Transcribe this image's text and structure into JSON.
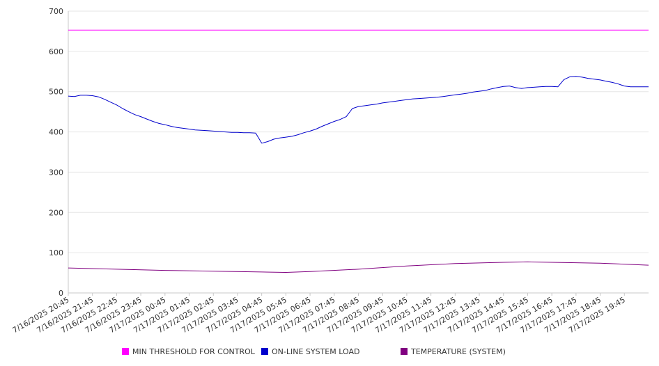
{
  "chart_data": {
    "type": "line",
    "ylim": [
      0,
      700
    ],
    "yticks": [
      0,
      100,
      200,
      300,
      400,
      500,
      600,
      700
    ],
    "x_range": [
      "7/16/2025 20:45",
      "7/17/2025 20:45"
    ],
    "xtick_labels": [
      "7/16/2025 20:45",
      "7/16/2025 21:45",
      "7/16/2025 22:45",
      "7/16/2025 23:45",
      "7/17/2025 00:45",
      "7/17/2025 01:45",
      "7/17/2025 02:45",
      "7/17/2025 03:45",
      "7/17/2025 04:45",
      "7/17/2025 05:45",
      "7/17/2025 06:45",
      "7/17/2025 07:45",
      "7/17/2025 08:45",
      "7/17/2025 09:45",
      "7/17/2025 10:45",
      "7/17/2025 11:45",
      "7/17/2025 12:45",
      "7/17/2025 13:45",
      "7/17/2025 14:45",
      "7/17/2025 15:45",
      "7/17/2025 16:45",
      "7/17/2025 17:45",
      "7/17/2025 18:45",
      "7/17/2025 19:45"
    ],
    "grid": true,
    "legend_position": "bottom",
    "series": [
      {
        "name": "MIN THRESHOLD FOR CONTROL",
        "color": "#ff00ff",
        "x": [
          "7/16/2025 20:45",
          "7/17/2025 20:45"
        ],
        "values": [
          653,
          653
        ]
      },
      {
        "name": "ON-LINE SYSTEM LOAD",
        "color": "#0000cc",
        "x": [
          "7/16/2025 20:45",
          "7/16/2025 21:00",
          "7/16/2025 21:15",
          "7/16/2025 21:30",
          "7/16/2025 21:45",
          "7/16/2025 22:00",
          "7/16/2025 22:15",
          "7/16/2025 22:30",
          "7/16/2025 22:45",
          "7/16/2025 23:00",
          "7/16/2025 23:15",
          "7/16/2025 23:30",
          "7/16/2025 23:45",
          "7/17/2025 00:00",
          "7/17/2025 00:15",
          "7/17/2025 00:30",
          "7/17/2025 00:45",
          "7/17/2025 01:00",
          "7/17/2025 01:15",
          "7/17/2025 01:30",
          "7/17/2025 01:45",
          "7/17/2025 02:00",
          "7/17/2025 02:15",
          "7/17/2025 02:30",
          "7/17/2025 02:45",
          "7/17/2025 03:00",
          "7/17/2025 03:15",
          "7/17/2025 03:30",
          "7/17/2025 03:45",
          "7/17/2025 04:00",
          "7/17/2025 04:15",
          "7/17/2025 04:30",
          "7/17/2025 04:45",
          "7/17/2025 05:00",
          "7/17/2025 05:15",
          "7/17/2025 05:30",
          "7/17/2025 05:45",
          "7/17/2025 06:00",
          "7/17/2025 06:15",
          "7/17/2025 06:30",
          "7/17/2025 06:45",
          "7/17/2025 07:00",
          "7/17/2025 07:15",
          "7/17/2025 07:30",
          "7/17/2025 07:45",
          "7/17/2025 08:00",
          "7/17/2025 08:15",
          "7/17/2025 08:30",
          "7/17/2025 08:45",
          "7/17/2025 09:00",
          "7/17/2025 09:15",
          "7/17/2025 09:30",
          "7/17/2025 09:45",
          "7/17/2025 10:00",
          "7/17/2025 10:15",
          "7/17/2025 10:30",
          "7/17/2025 10:45",
          "7/17/2025 11:00",
          "7/17/2025 11:15",
          "7/17/2025 11:30",
          "7/17/2025 11:45",
          "7/17/2025 12:00",
          "7/17/2025 12:15",
          "7/17/2025 12:30",
          "7/17/2025 12:45",
          "7/17/2025 13:00",
          "7/17/2025 13:15",
          "7/17/2025 13:30",
          "7/17/2025 13:45",
          "7/17/2025 14:00",
          "7/17/2025 14:15",
          "7/17/2025 14:30",
          "7/17/2025 14:45",
          "7/17/2025 15:00",
          "7/17/2025 15:15",
          "7/17/2025 15:30",
          "7/17/2025 15:45",
          "7/17/2025 16:00",
          "7/17/2025 16:15",
          "7/17/2025 16:30",
          "7/17/2025 16:45",
          "7/17/2025 17:00",
          "7/17/2025 17:15",
          "7/17/2025 17:30",
          "7/17/2025 17:45",
          "7/17/2025 18:00",
          "7/17/2025 18:15",
          "7/17/2025 18:30",
          "7/17/2025 18:45",
          "7/17/2025 19:00",
          "7/17/2025 19:15",
          "7/17/2025 19:30",
          "7/17/2025 19:45",
          "7/17/2025 20:00",
          "7/17/2025 20:15",
          "7/17/2025 20:30",
          "7/17/2025 20:45"
        ],
        "values": [
          489,
          488,
          491,
          491,
          490,
          487,
          481,
          474,
          467,
          458,
          450,
          443,
          438,
          432,
          426,
          421,
          418,
          414,
          411,
          409,
          407,
          405,
          404,
          403,
          402,
          401,
          400,
          399,
          399,
          398,
          398,
          397,
          372,
          376,
          382,
          385,
          387,
          389,
          393,
          398,
          402,
          407,
          414,
          420,
          426,
          431,
          438,
          458,
          463,
          465,
          467,
          469,
          472,
          474,
          476,
          478,
          480,
          482,
          483,
          484,
          485,
          486,
          488,
          490,
          492,
          494,
          496,
          499,
          501,
          503,
          507,
          510,
          513,
          514,
          510,
          508,
          510,
          511,
          512,
          513,
          513,
          512,
          530,
          537,
          538,
          536,
          533,
          531,
          529,
          526,
          523,
          519,
          514,
          512,
          512,
          512,
          512
        ]
      },
      {
        "name": "TEMPERATURE (SYSTEM)",
        "color": "#800080",
        "x": [
          "7/16/2025 20:45",
          "7/16/2025 22:45",
          "7/17/2025 00:45",
          "7/17/2025 02:45",
          "7/17/2025 04:45",
          "7/17/2025 05:45",
          "7/17/2025 06:45",
          "7/17/2025 08:45",
          "7/17/2025 10:45",
          "7/17/2025 12:45",
          "7/17/2025 14:45",
          "7/17/2025 15:45",
          "7/17/2025 16:45",
          "7/17/2025 18:45",
          "7/17/2025 20:45"
        ],
        "values": [
          62,
          59,
          56,
          54,
          52,
          51,
          53,
          59,
          67,
          73,
          76,
          77,
          76,
          74,
          69
        ]
      }
    ]
  }
}
